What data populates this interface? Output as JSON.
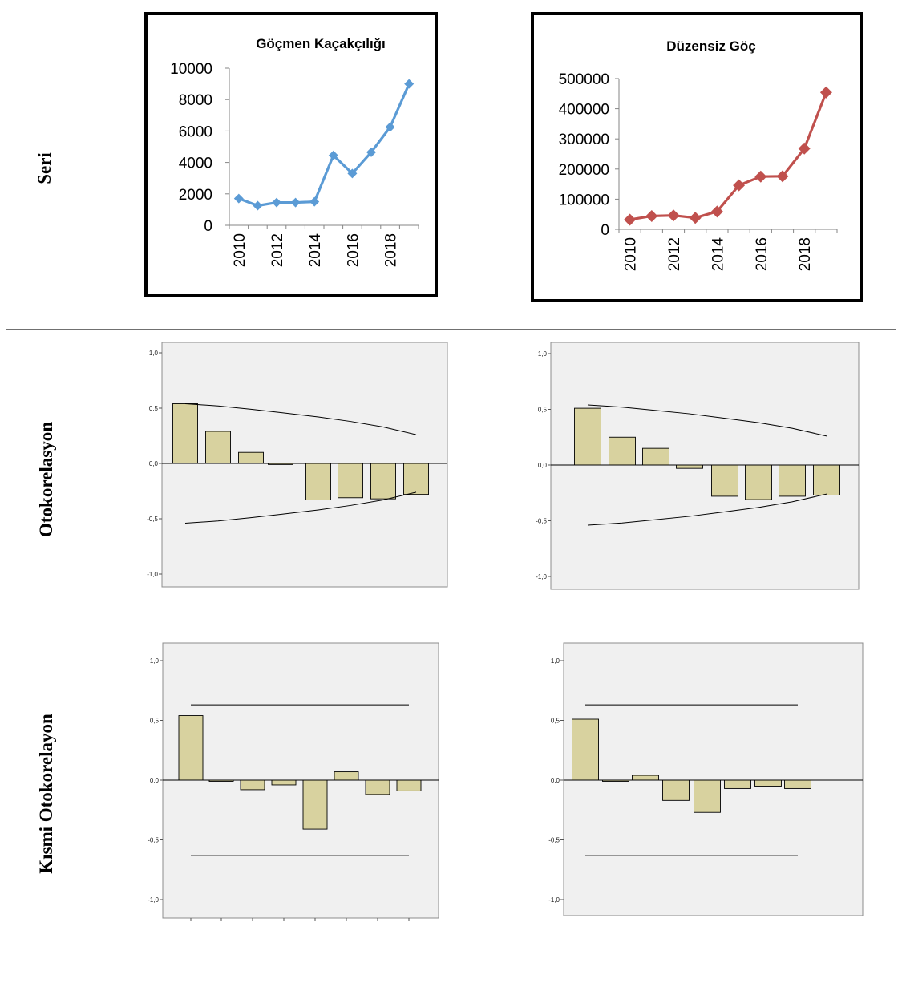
{
  "row_labels": {
    "series": "Seri",
    "acf": "Otokorelasyon",
    "pacf": "Kısmi Otokorelayon"
  },
  "chart_data": [
    {
      "type": "line",
      "title": "Göçmen Kaçakçılığı",
      "x": [
        2010,
        2011,
        2012,
        2013,
        2014,
        2015,
        2016,
        2017,
        2018,
        2019
      ],
      "x_tick_labels": [
        "2010",
        "2012",
        "2014",
        "2016",
        "2018"
      ],
      "series": [
        {
          "values": [
            1700,
            1250,
            1450,
            1450,
            1500,
            4450,
            3300,
            4650,
            6250,
            9000
          ],
          "color": "#5b9bd5"
        }
      ],
      "ylim": [
        0,
        10000
      ],
      "y_tick_labels": [
        "0",
        "2000",
        "4000",
        "6000",
        "8000",
        "10000"
      ],
      "xlabel": "",
      "ylabel": "",
      "grid": false
    },
    {
      "type": "line",
      "title": "Düzensiz Göç",
      "x": [
        2010,
        2011,
        2012,
        2013,
        2014,
        2015,
        2016,
        2017,
        2018,
        2019
      ],
      "x_tick_labels": [
        "2010",
        "2012",
        "2014",
        "2016",
        "2018"
      ],
      "series": [
        {
          "values": [
            32000,
            44000,
            46000,
            38000,
            59000,
            146000,
            175000,
            176000,
            268000,
            454000
          ],
          "color": "#c0504d"
        }
      ],
      "ylim": [
        0,
        500000
      ],
      "y_tick_labels": [
        "0",
        "100000",
        "200000",
        "300000",
        "400000",
        "500000"
      ],
      "xlabel": "",
      "ylabel": "",
      "grid": false
    },
    {
      "type": "bar",
      "lags": [
        1,
        2,
        3,
        4,
        5,
        6,
        7,
        8
      ],
      "values": [
        0.54,
        0.29,
        0.1,
        -0.01,
        -0.33,
        -0.31,
        -0.32,
        -0.28
      ],
      "upper_limit": [
        0.54,
        0.52,
        0.49,
        0.46,
        0.42,
        0.38,
        0.33,
        0.26
      ],
      "lower_limit": [
        -0.54,
        -0.52,
        -0.49,
        -0.46,
        -0.42,
        -0.38,
        -0.33,
        -0.26
      ],
      "ylim": [
        -1.08,
        1.1
      ],
      "y_tick_labels": [
        "1,0",
        "0,5",
        "0,0",
        "-0,5",
        "-1,0"
      ],
      "bar_color": "#d8d29f",
      "plot_bg": "#f0f0f0"
    },
    {
      "type": "bar",
      "lags": [
        1,
        2,
        3,
        4,
        5,
        6,
        7,
        8
      ],
      "values": [
        0.51,
        0.25,
        0.15,
        -0.03,
        -0.28,
        -0.31,
        -0.28,
        -0.27
      ],
      "upper_limit": [
        0.54,
        0.52,
        0.49,
        0.46,
        0.42,
        0.38,
        0.33,
        0.26
      ],
      "lower_limit": [
        -0.54,
        -0.52,
        -0.49,
        -0.46,
        -0.42,
        -0.38,
        -0.33,
        -0.26
      ],
      "ylim": [
        -1.08,
        1.1
      ],
      "y_tick_labels": [
        "1,0",
        "0,5",
        "0,0",
        "-0,5",
        "-1,0"
      ],
      "bar_color": "#d8d29f",
      "plot_bg": "#f0f0f0"
    },
    {
      "type": "bar",
      "lags": [
        1,
        2,
        3,
        4,
        5,
        6,
        7,
        8
      ],
      "values": [
        0.54,
        -0.01,
        -0.08,
        -0.04,
        -0.41,
        0.07,
        -0.12,
        -0.09
      ],
      "upper_limit": [
        0.63,
        0.63,
        0.63,
        0.63,
        0.63,
        0.63,
        0.63,
        0.63
      ],
      "lower_limit": [
        -0.63,
        -0.63,
        -0.63,
        -0.63,
        -0.63,
        -0.63,
        -0.63,
        -0.63
      ],
      "ylim": [
        -1.1,
        1.12
      ],
      "y_tick_labels": [
        "1,0",
        "0,5",
        "0,0",
        "-0,5",
        "-1,0"
      ],
      "bar_color": "#d8d29f",
      "plot_bg": "#f0f0f0"
    },
    {
      "type": "bar",
      "lags": [
        1,
        2,
        3,
        4,
        5,
        6,
        7,
        8
      ],
      "values": [
        0.51,
        -0.01,
        0.04,
        -0.17,
        -0.27,
        -0.07,
        -0.05,
        -0.07
      ],
      "upper_limit": [
        0.63,
        0.63,
        0.63,
        0.63,
        0.63,
        0.63,
        0.63,
        0.63
      ],
      "lower_limit": [
        -0.63,
        -0.63,
        -0.63,
        -0.63,
        -0.63,
        -0.63,
        -0.63,
        -0.63
      ],
      "ylim": [
        -1.1,
        1.12
      ],
      "y_tick_labels": [
        "1,0",
        "0,5",
        "0,0",
        "-0,5",
        "-1,0"
      ],
      "bar_color": "#d8d29f",
      "plot_bg": "#f0f0f0"
    }
  ]
}
